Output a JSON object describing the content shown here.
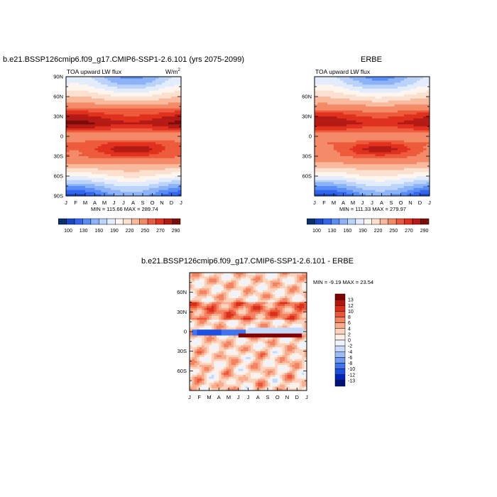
{
  "colors": {
    "levels_mean": [
      "#08306b",
      "#1847c5",
      "#3366ee",
      "#5a8cf5",
      "#8cb3f7",
      "#bcd3f9",
      "#e2ecfc",
      "#fdf5ee",
      "#fce0cf",
      "#f9b99c",
      "#f48a68",
      "#ee5a3c",
      "#e0301e",
      "#b51a14",
      "#7a0c0c"
    ],
    "levels_diff": [
      "#00127a",
      "#0024b8",
      "#1f4fe0",
      "#3f74ee",
      "#6f99f3",
      "#9dbcf6",
      "#c7d9fa",
      "#eef4fd",
      "#fdf0e8",
      "#fbd3bd",
      "#f8ad8e",
      "#f38361",
      "#ec5638",
      "#d92e1a",
      "#b4160e",
      "#800000"
    ]
  },
  "chart_data": [
    {
      "type": "heatmap",
      "title": "b.e21.BSSP126cmip6.f09_g17.CMIP6-SSP1-2.6.101 (yrs 2075-2099)",
      "subtitle": "TOA upward LW flux",
      "units": "W/m",
      "units_sup": "2",
      "x_ticks": [
        "J",
        "F",
        "M",
        "A",
        "M",
        "J",
        "J",
        "A",
        "S",
        "O",
        "N",
        "D",
        "J"
      ],
      "y_ticks": [
        "90N",
        "60N",
        "30N",
        "0",
        "30S",
        "60S",
        "90S"
      ],
      "y_values": [
        90,
        60,
        30,
        0,
        -30,
        -60,
        -90
      ],
      "ylim": [
        -90,
        90
      ],
      "stats": "MIN = 115.66  MAX = 289.74",
      "min": 115.66,
      "max": 289.74,
      "colorbar_labels": [
        "100",
        "130",
        "160",
        "190",
        "220",
        "250",
        "270",
        "290"
      ],
      "colorbar_orientation": "horizontal",
      "profile": {
        "lat": [
          -90,
          -80,
          -70,
          -60,
          -50,
          -40,
          -30,
          -20,
          -10,
          0,
          10,
          20,
          30,
          40,
          50,
          60,
          70,
          80,
          90
        ],
        "value": [
          130,
          150,
          175,
          200,
          220,
          238,
          255,
          265,
          258,
          235,
          262,
          278,
          268,
          252,
          232,
          212,
          192,
          172,
          160
        ]
      }
    },
    {
      "type": "heatmap",
      "title": "ERBE",
      "subtitle": "TOA upward LW flux",
      "x_ticks": [
        "J",
        "F",
        "M",
        "A",
        "M",
        "J",
        "J",
        "A",
        "S",
        "O",
        "N",
        "D",
        "J"
      ],
      "y_ticks": [
        "60N",
        "30N",
        "0",
        "30S",
        "60S"
      ],
      "y_values": [
        60,
        30,
        0,
        -30,
        -60
      ],
      "ylim": [
        -90,
        90
      ],
      "stats": "MIN = 111.33  MAX = 279.97",
      "min": 111.33,
      "max": 279.97,
      "colorbar_labels": [
        "100",
        "130",
        "160",
        "190",
        "220",
        "250",
        "270",
        "290"
      ],
      "colorbar_orientation": "horizontal",
      "profile": {
        "lat": [
          -90,
          -80,
          -70,
          -60,
          -50,
          -40,
          -30,
          -20,
          -10,
          0,
          10,
          20,
          30,
          40,
          50,
          60,
          70,
          80,
          90
        ],
        "value": [
          125,
          148,
          172,
          198,
          218,
          236,
          252,
          262,
          255,
          232,
          258,
          274,
          264,
          250,
          230,
          210,
          190,
          170,
          158
        ]
      }
    },
    {
      "type": "heatmap",
      "title": "b.e21.BSSP126cmip6.f09_g17.CMIP6-SSP1-2.6.101 - ERBE",
      "x_ticks": [
        "J",
        "F",
        "M",
        "A",
        "M",
        "J",
        "J",
        "A",
        "S",
        "O",
        "N",
        "D",
        "J"
      ],
      "y_ticks": [
        "60N",
        "30N",
        "0",
        "30S",
        "60S"
      ],
      "y_values": [
        60,
        30,
        0,
        -30,
        -60
      ],
      "ylim": [
        -90,
        90
      ],
      "stats": "MIN =  -9.19 MAX =  23.54",
      "min": -9.19,
      "max": 23.54,
      "colorbar_labels": [
        "13",
        "12",
        "10",
        "8",
        "6",
        "4",
        "2",
        "0",
        "-2",
        "-4",
        "-6",
        "-8",
        "-10",
        "-12",
        "-13"
      ],
      "colorbar_orientation": "vertical"
    }
  ]
}
